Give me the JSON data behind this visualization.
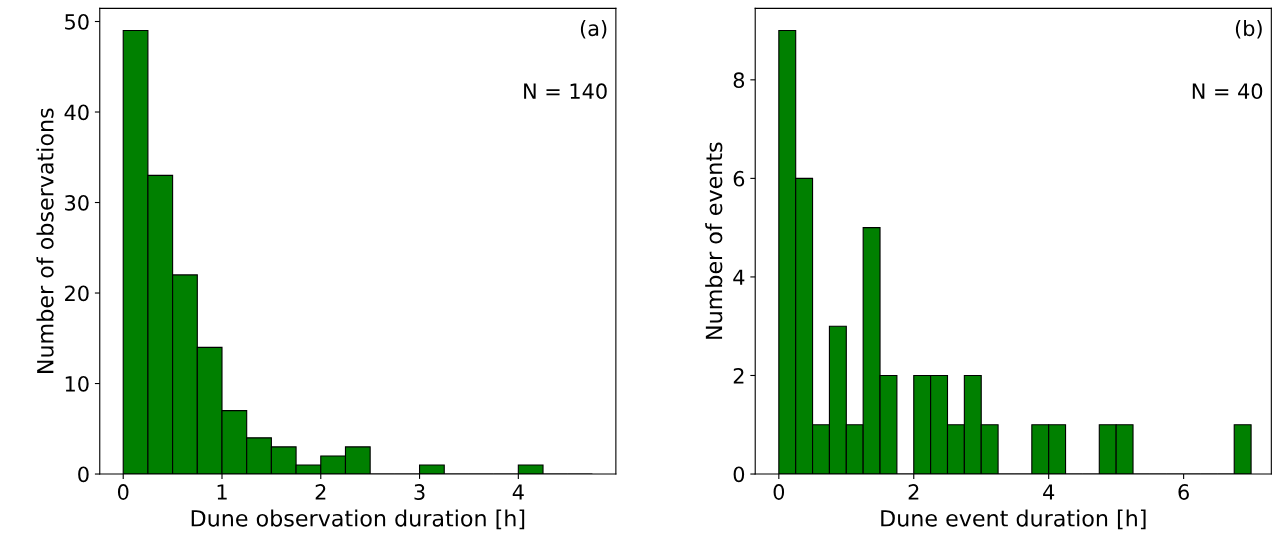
{
  "chart_data": [
    {
      "type": "histogram",
      "xlabel": "Dune observation duration [h]",
      "ylabel": "Number of observations",
      "annotations": [
        "(a)",
        "N = 140"
      ],
      "bins": [
        0,
        0.25,
        0.5,
        0.75,
        1,
        1.25,
        1.5,
        1.75,
        2,
        2.25,
        2.5,
        2.75,
        3,
        3.25,
        3.5,
        3.75,
        4,
        4.25,
        4.5,
        4.75
      ],
      "values": [
        49,
        33,
        22,
        14,
        7,
        4,
        3,
        1,
        2,
        3,
        0,
        0,
        1,
        0,
        0,
        0,
        1,
        0,
        0
      ],
      "color": "#008000",
      "xlim": [
        -0.2375,
        4.9875
      ],
      "ylim": [
        0,
        51.45
      ],
      "xticks": [
        0,
        1,
        2,
        3,
        4
      ],
      "yticks": [
        0,
        10,
        20,
        30,
        40,
        50
      ],
      "grid": false,
      "legend": false
    },
    {
      "type": "histogram",
      "xlabel": "Dune event duration [h]",
      "ylabel": "Number of events",
      "annotations": [
        "(b)",
        "N = 40"
      ],
      "bins": [
        0,
        0.25,
        0.5,
        0.75,
        1,
        1.25,
        1.5,
        1.75,
        2,
        2.25,
        2.5,
        2.75,
        3,
        3.25,
        3.5,
        3.75,
        4,
        4.25,
        4.5,
        4.75,
        5,
        5.25,
        5.5,
        5.75,
        6,
        6.25,
        6.5,
        6.75,
        7
      ],
      "values": [
        9,
        6,
        1,
        3,
        1,
        5,
        2,
        0,
        2,
        2,
        1,
        2,
        1,
        0,
        0,
        1,
        1,
        0,
        0,
        1,
        1,
        0,
        0,
        0,
        0,
        0,
        0,
        1
      ],
      "color": "#008000",
      "xlim": [
        -0.35,
        7.3
      ],
      "ylim": [
        0,
        9.45
      ],
      "xticks": [
        0,
        2,
        4,
        6
      ],
      "yticks": [
        0,
        2,
        4,
        6,
        8
      ],
      "grid": false,
      "legend": false
    }
  ]
}
